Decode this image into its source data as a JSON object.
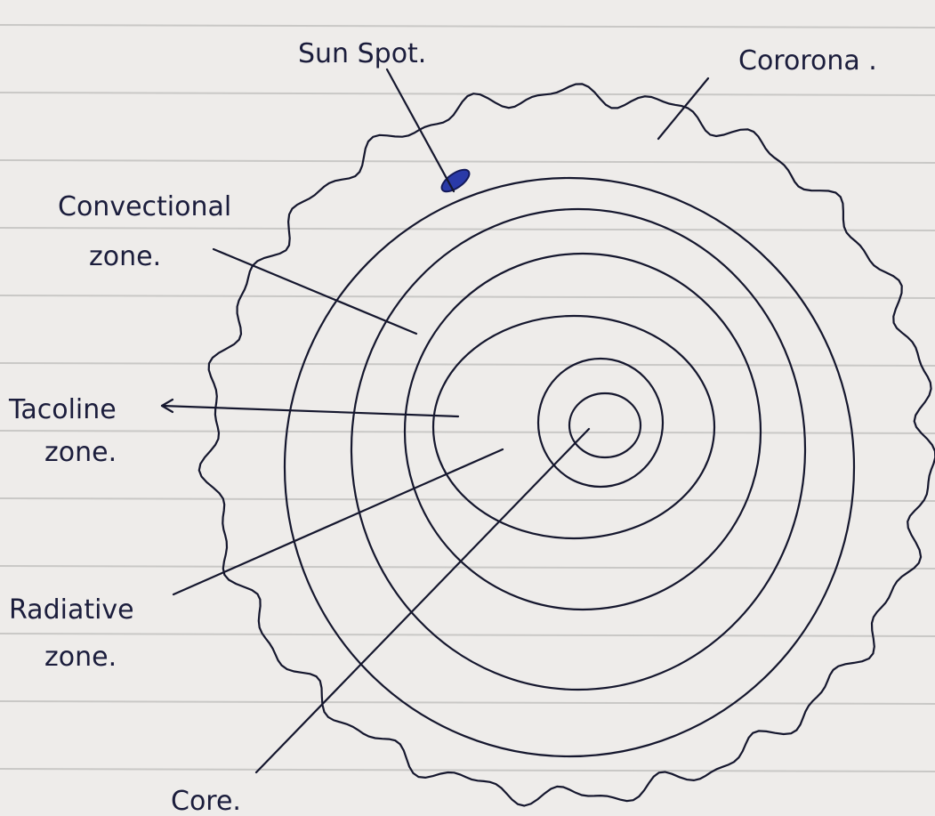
{
  "labels": [
    {
      "lines": [
        "Sun Spot."
      ]
    },
    {
      "lines": [
        "Cororona ."
      ]
    },
    {
      "lines": [
        "Convectional",
        "zone."
      ]
    },
    {
      "lines": [
        "Tacoline",
        "zone."
      ]
    },
    {
      "lines": [
        "Radiative",
        "zone."
      ]
    },
    {
      "lines": [
        "Core."
      ]
    }
  ]
}
